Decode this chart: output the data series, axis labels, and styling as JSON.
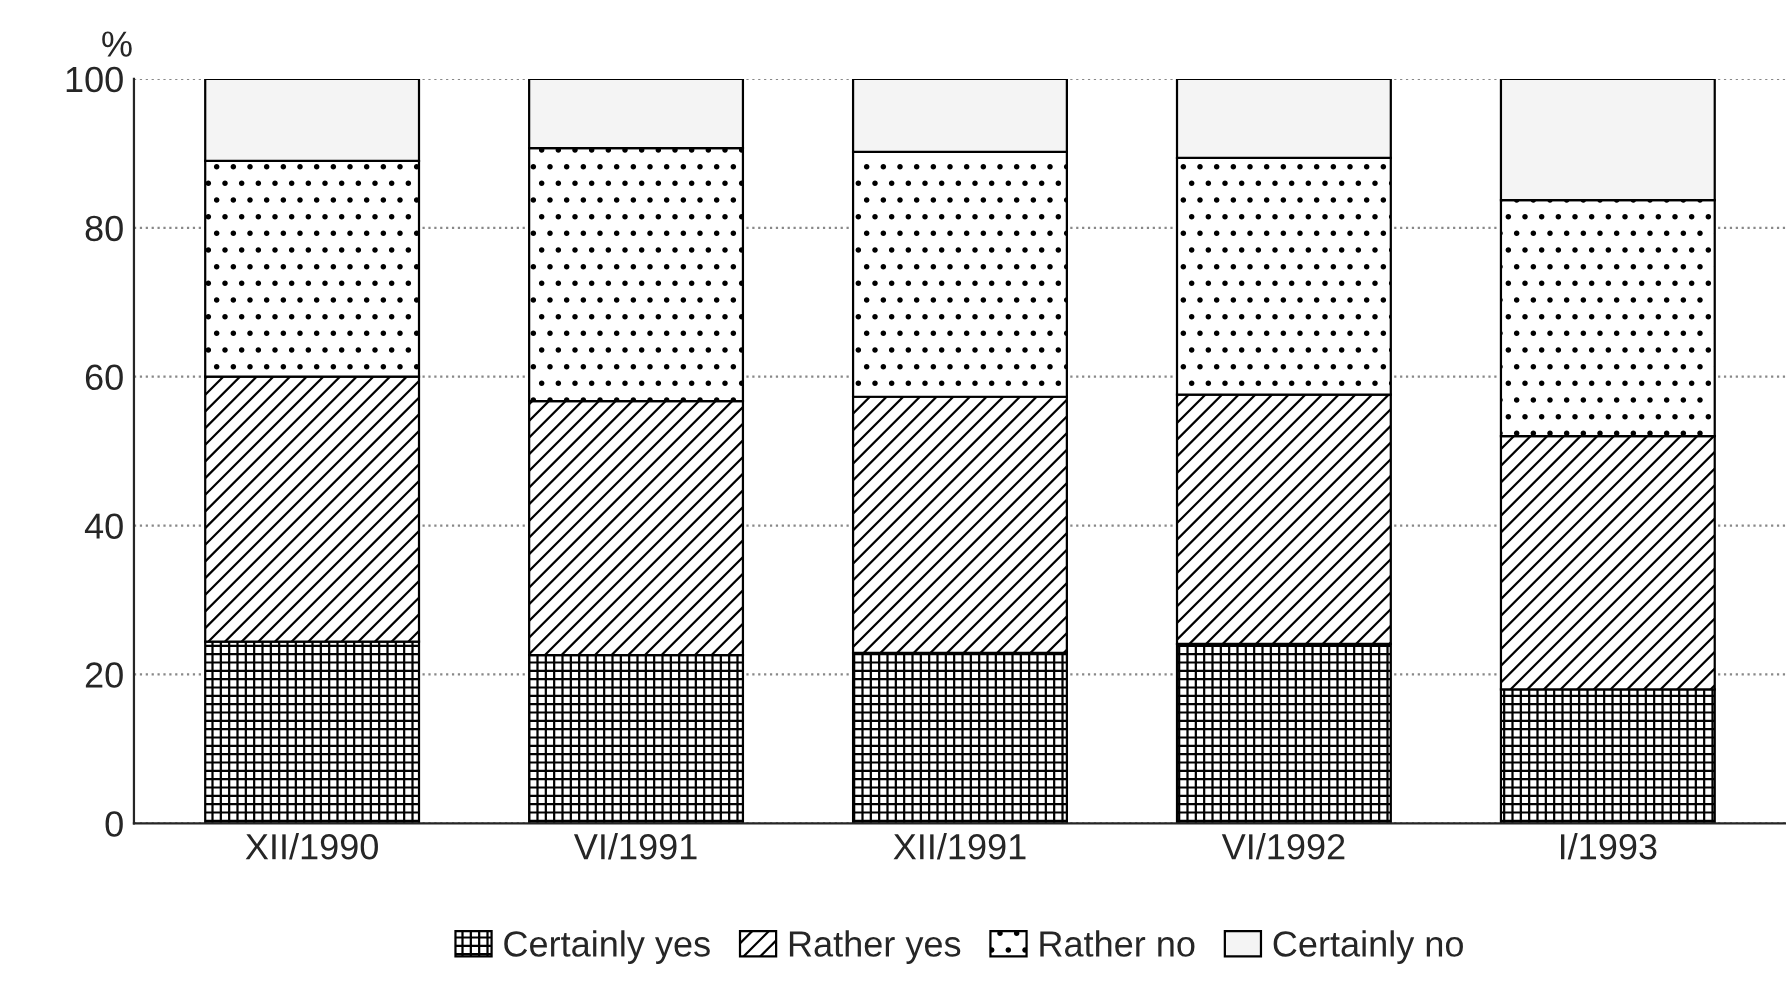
{
  "chart_data": {
    "type": "bar",
    "stacked": true,
    "ylabel": "%",
    "categories": [
      "XII/1990",
      "VI/1991",
      "XII/1991",
      "VI/1992",
      "I/1993"
    ],
    "series": [
      {
        "name": "Certainly yes",
        "color": "#000000",
        "values": [
          24.4,
          22.6,
          22.9,
          24.1,
          18.0
        ]
      },
      {
        "name": "Rather yes",
        "color": "#000000",
        "values": [
          35.6,
          34.1,
          34.4,
          33.5,
          34.0
        ]
      },
      {
        "name": "Rather no",
        "color": "#000000",
        "values": [
          29.0,
          34.0,
          32.9,
          31.8,
          31.7
        ]
      },
      {
        "name": "Certainly no",
        "color": "#f4f4f4",
        "values": [
          11.0,
          9.3,
          9.8,
          10.6,
          16.3
        ]
      }
    ],
    "ylim": [
      0,
      100
    ],
    "yticks": [
      0,
      20,
      40,
      60,
      80,
      100
    ],
    "grid": "y",
    "legend": "bottom"
  }
}
